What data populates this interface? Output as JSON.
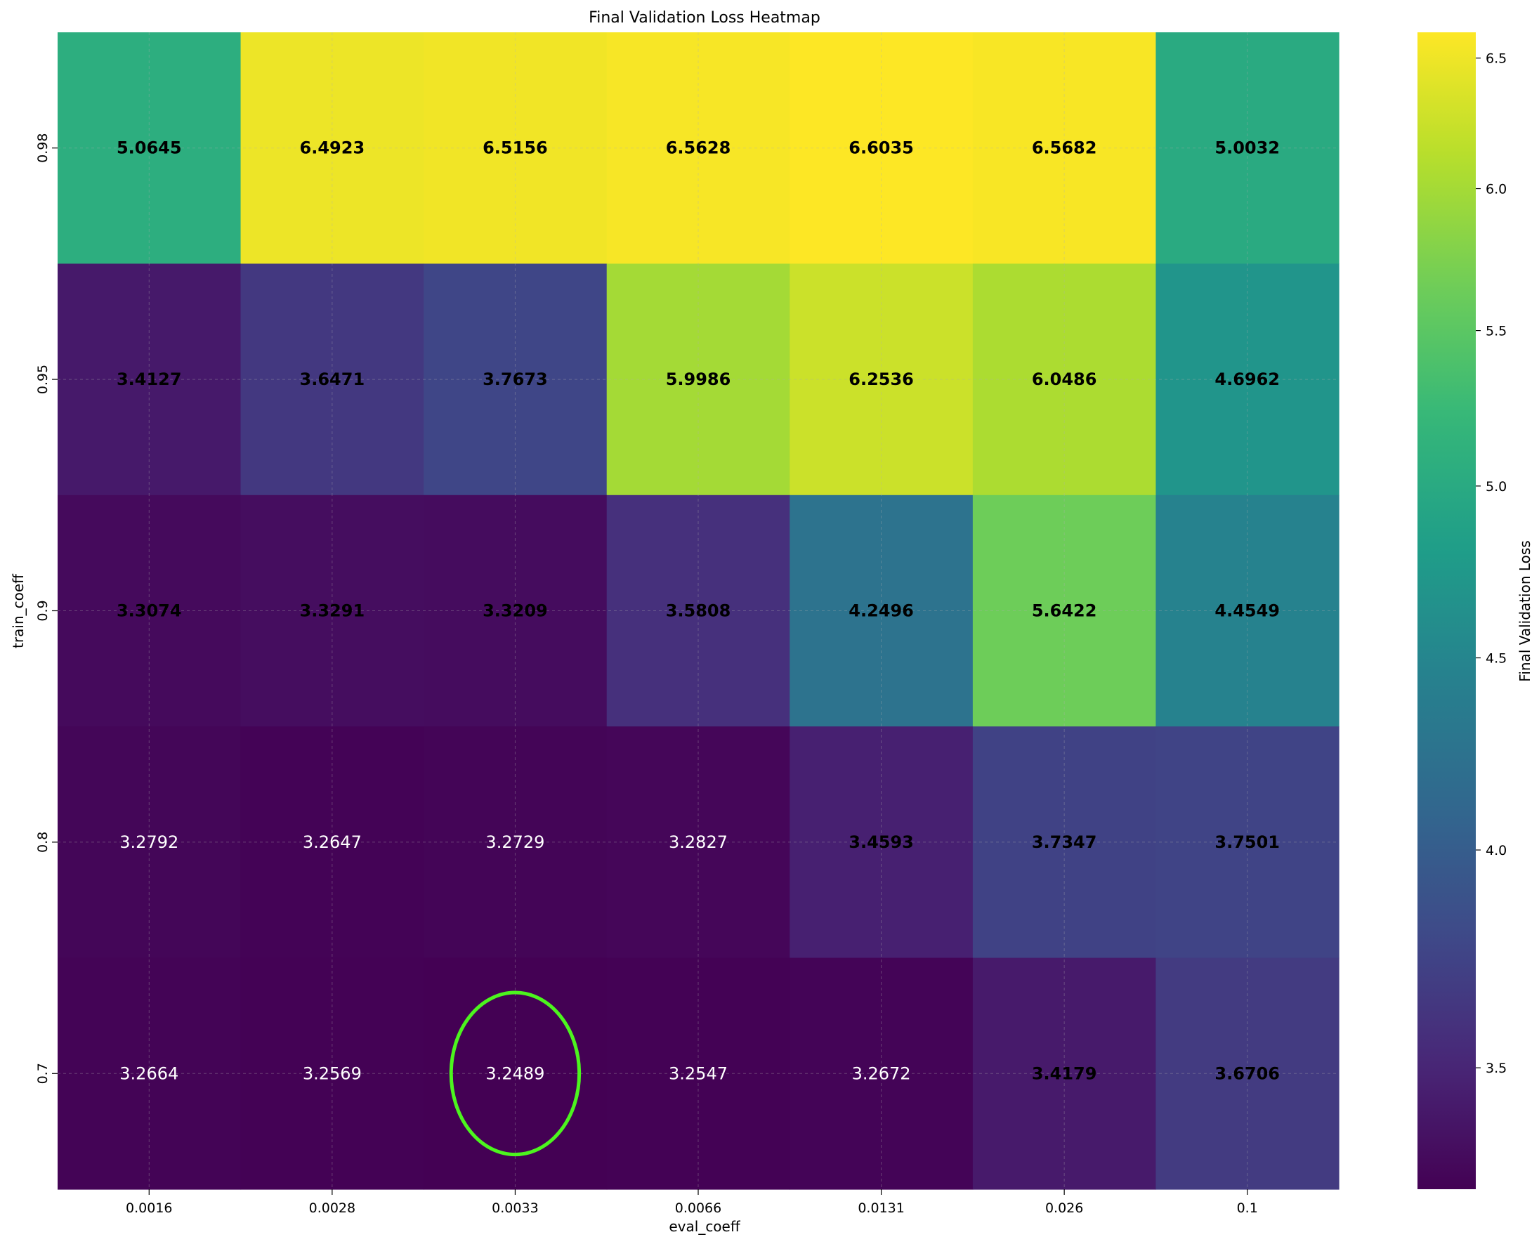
{
  "chart_data": {
    "type": "heatmap",
    "title": "Final Validation Loss Heatmap",
    "xlabel": "eval_coeff",
    "ylabel": "train_coeff",
    "x_categories": [
      "0.0016",
      "0.0028",
      "0.0033",
      "0.0066",
      "0.0131",
      "0.026",
      "0.1"
    ],
    "y_categories": [
      "0.98",
      "0.95",
      "0.9",
      "0.8",
      "0.7"
    ],
    "values": [
      [
        5.0645,
        6.4923,
        6.5156,
        6.5628,
        6.6035,
        6.5682,
        5.0032
      ],
      [
        3.4127,
        3.6471,
        3.7673,
        5.9986,
        6.2536,
        6.0486,
        4.6962
      ],
      [
        3.3074,
        3.3291,
        3.3209,
        3.5808,
        4.2496,
        5.6422,
        4.4549
      ],
      [
        3.2792,
        3.2647,
        3.2729,
        3.2827,
        3.4593,
        3.7347,
        3.7501
      ],
      [
        3.2664,
        3.2569,
        3.2489,
        3.2547,
        3.2672,
        3.4179,
        3.6706
      ]
    ],
    "value_labels": [
      [
        "5.0645",
        "6.4923",
        "6.5156",
        "6.5628",
        "6.6035",
        "6.5682",
        "5.0032"
      ],
      [
        "3.4127",
        "3.6471",
        "3.7673",
        "5.9986",
        "6.2536",
        "6.0486",
        "4.6962"
      ],
      [
        "3.3074",
        "3.3291",
        "3.3209",
        "3.5808",
        "4.2496",
        "5.6422",
        "4.4549"
      ],
      [
        "3.2792",
        "3.2647",
        "3.2729",
        "3.2827",
        "3.4593",
        "3.7347",
        "3.7501"
      ],
      [
        "3.2664",
        "3.2569",
        "3.2489",
        "3.2547",
        "3.2672",
        "3.4179",
        "3.6706"
      ]
    ],
    "bold_threshold": 3.3,
    "highlight": {
      "x": "0.0033",
      "y": "0.7",
      "color": "#4cf51e"
    },
    "colormap": "viridis",
    "color_scale": "log",
    "colorbar": {
      "label": "Final Validation Loss",
      "ticks": [
        3.5,
        4.0,
        4.5,
        5.0,
        5.5,
        6.0,
        6.5
      ],
      "tick_labels": [
        "3.5",
        "4.0",
        "4.5",
        "5.0",
        "5.5",
        "6.0",
        "6.5"
      ],
      "range": [
        3.2489,
        6.6035
      ]
    },
    "grid": true
  }
}
